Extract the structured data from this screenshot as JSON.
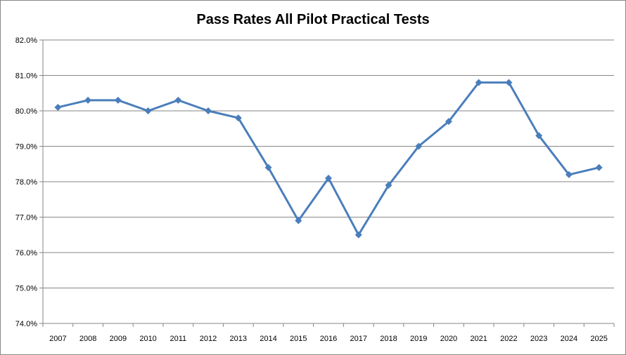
{
  "chart_data": {
    "type": "line",
    "title": "Pass Rates All Pilot Practical Tests",
    "xlabel": "",
    "ylabel": "",
    "categories": [
      "2007",
      "2008",
      "2009",
      "2010",
      "2011",
      "2012",
      "2013",
      "2014",
      "2015",
      "2016",
      "2017",
      "2018",
      "2019",
      "2020",
      "2021",
      "2022",
      "2023",
      "2024",
      "2025"
    ],
    "series": [
      {
        "name": "Pass Rate",
        "values": [
          80.1,
          80.3,
          80.3,
          80.0,
          80.3,
          80.0,
          79.8,
          78.4,
          76.9,
          78.1,
          76.5,
          77.9,
          79.0,
          79.7,
          80.8,
          80.8,
          79.3,
          78.2,
          78.4
        ]
      }
    ],
    "ylim": [
      74.0,
      82.0
    ],
    "yticks": [
      "74.0%",
      "75.0%",
      "76.0%",
      "77.0%",
      "78.0%",
      "79.0%",
      "80.0%",
      "81.0%",
      "82.0%"
    ],
    "grid": true,
    "legend": "none",
    "colors": {
      "line": "#4a7ebb",
      "grid": "#868686"
    }
  }
}
